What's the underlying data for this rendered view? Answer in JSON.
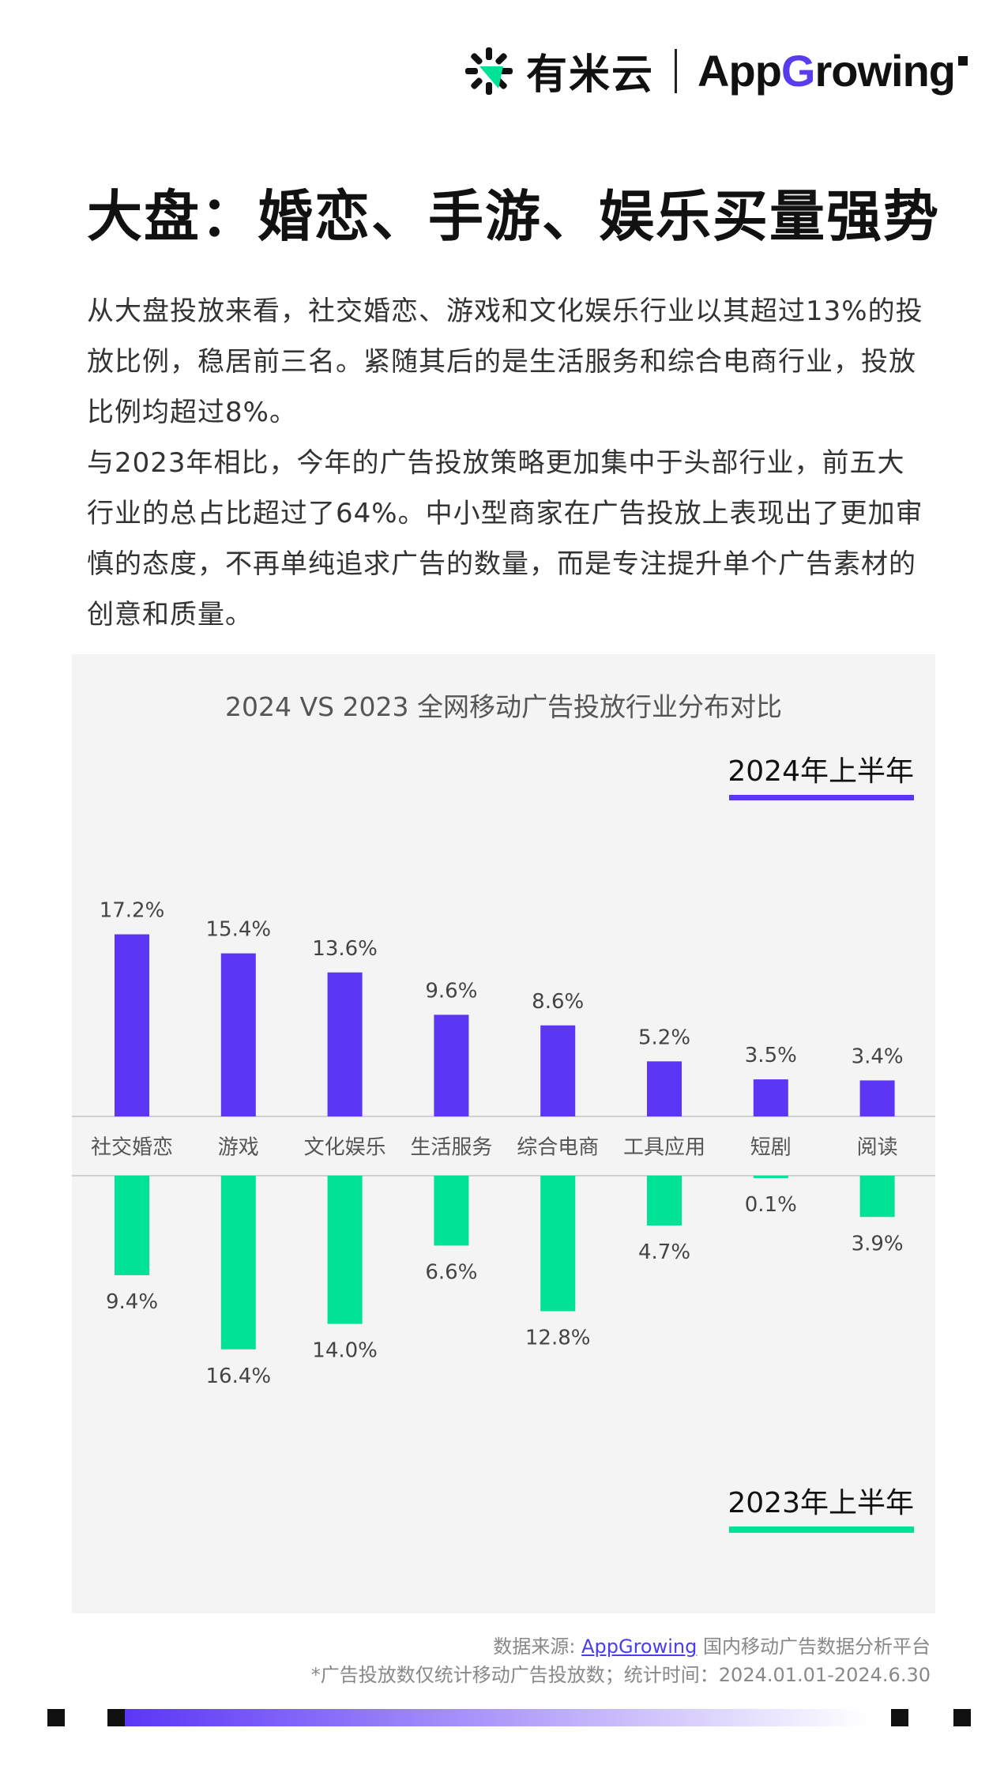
{
  "header": {
    "logo_youmiyun_text": "有米云",
    "logo_appgrowing_prefix": "App",
    "logo_appgrowing_g": "G",
    "logo_appgrowing_suffix": "rowing"
  },
  "page_title": "大盘：婚恋、手游、娱乐买量强势",
  "paragraphs": [
    "从大盘投放来看，社交婚恋、游戏和文化娱乐行业以其超过13%的投放比例，稳居前三名。紧随其后的是生活服务和综合电商行业，投放比例均超过8%。",
    "与2023年相比，今年的广告投放策略更加集中于头部行业，前五大行业的总占比超过了64%。中小型商家在广告投放上表现出了更加审慎的态度，不再单纯追求广告的数量，而是专注提升单个广告素材的创意和质量。"
  ],
  "chart_data": {
    "type": "bar",
    "title": "2024 VS 2023 全网移动广告投放行业分布对比",
    "categories": [
      "社交婚恋",
      "游戏",
      "文化娱乐",
      "生活服务",
      "综合电商",
      "工具应用",
      "短剧",
      "阅读"
    ],
    "series": [
      {
        "name": "2024年上半年",
        "color": "#5b36f5",
        "direction": "up",
        "values": [
          17.2,
          15.4,
          13.6,
          9.6,
          8.6,
          5.2,
          3.5,
          3.4
        ],
        "labels": [
          "17.2%",
          "15.4%",
          "13.6%",
          "9.6%",
          "8.6%",
          "5.2%",
          "3.5%",
          "3.4%"
        ]
      },
      {
        "name": "2023年上半年",
        "color": "#00e295",
        "direction": "down",
        "values": [
          9.4,
          16.4,
          14.0,
          6.6,
          12.8,
          4.7,
          0.1,
          3.9
        ],
        "labels": [
          "9.4%",
          "16.4%",
          "14.0%",
          "6.6%",
          "12.8%",
          "4.7%",
          "0.1%",
          "3.9%"
        ]
      }
    ],
    "grid": false,
    "legend_placement": "top-right / bottom-right"
  },
  "footer": {
    "source_prefix": "数据来源: ",
    "source_link": "AppGrowing",
    "source_suffix": " 国内移动广告数据分析平台",
    "note": "*广告投放数仅统计移动广告投放数；统计时间：2024.01.01-2024.6.30"
  },
  "colors": {
    "accent_purple": "#5b36f5",
    "accent_green": "#00e295",
    "panel_bg": "#f4f4f4"
  }
}
